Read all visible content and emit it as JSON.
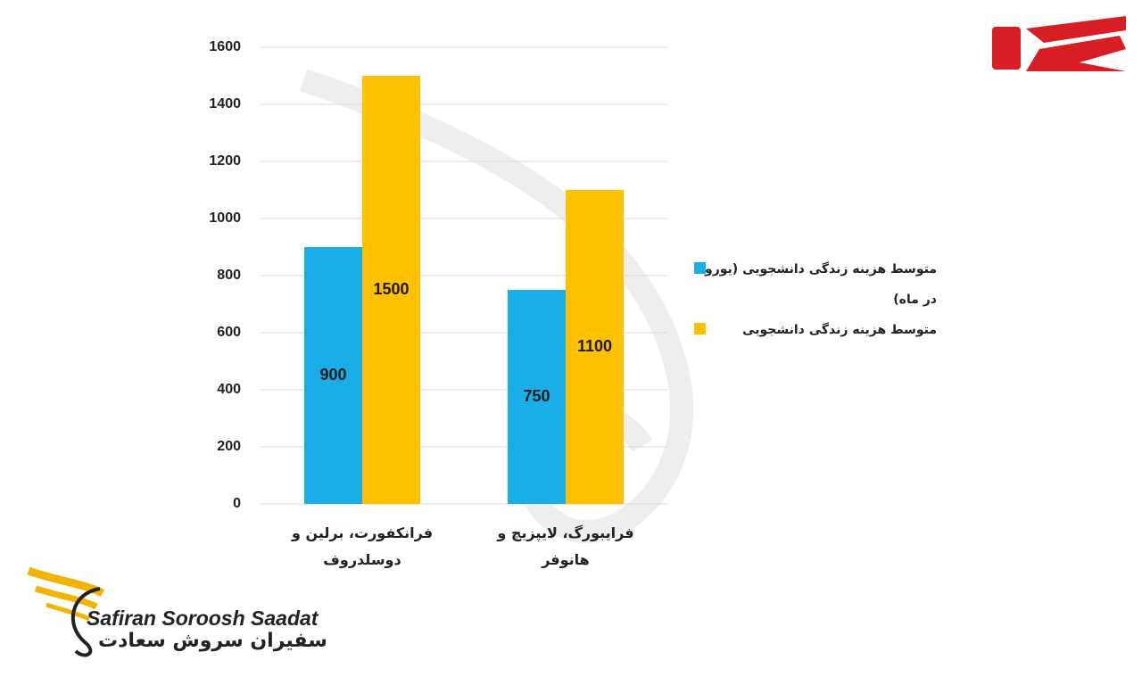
{
  "chart_data": {
    "type": "bar",
    "categories": [
      "فرانکفورت، برلین و دوسلدروف",
      "فرایبورگ، لایپزیچ و هانوفر"
    ],
    "series": [
      {
        "name": "متوسط هزینه زندگی دانشجویی (یورو در ماه)",
        "color": "#1aaee8",
        "values": [
          900,
          750
        ]
      },
      {
        "name": "متوسط هزینه زندگی دانشجویی",
        "color": "#ffc000",
        "values": [
          1500,
          1100
        ]
      }
    ],
    "ylim": [
      0,
      1600
    ],
    "yticks": [
      0,
      200,
      400,
      600,
      800,
      1000,
      1200,
      1400,
      1600
    ],
    "grid": true,
    "legend": "right"
  },
  "branding": {
    "name_en": "Safiran Soroosh Saadat",
    "name_fa": "سفیران سروش سعادت"
  }
}
